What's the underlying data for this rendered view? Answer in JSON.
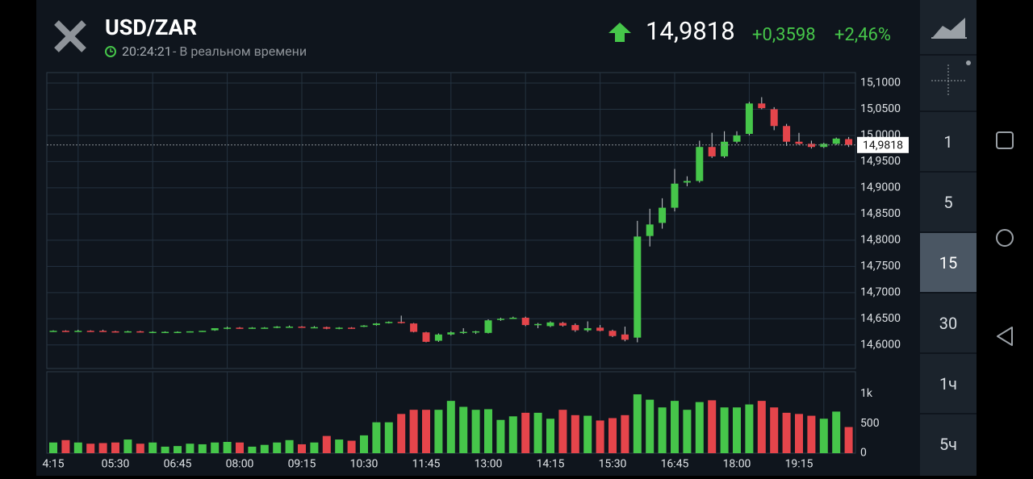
{
  "header": {
    "symbol": "USD/ZAR",
    "time": "20:24:21",
    "status": "- В реальном времени",
    "price": "14,9818",
    "change": "+0,3598",
    "change_percent": "+2,46%"
  },
  "sidebar": {
    "intervals": [
      "1",
      "5",
      "15",
      "30",
      "1ч",
      "5ч"
    ],
    "selected": 2
  },
  "chart_data": {
    "type": "candlestick",
    "categories": [
      "4:15",
      null,
      null,
      null,
      null,
      "05:30",
      null,
      null,
      null,
      null,
      "06:45",
      null,
      null,
      null,
      null,
      "08:00",
      null,
      null,
      null,
      null,
      "09:15",
      null,
      null,
      null,
      null,
      "10:30",
      null,
      null,
      null,
      null,
      "11:45",
      null,
      null,
      null,
      null,
      "13:00",
      null,
      null,
      null,
      null,
      "14:15",
      null,
      null,
      null,
      null,
      "15:30",
      null,
      null,
      null,
      null,
      "16:45",
      null,
      null,
      null,
      null,
      "18:00",
      null,
      null,
      null,
      null,
      "19:15",
      null,
      null,
      null,
      null
    ],
    "open": [
      14.626,
      14.627,
      14.626,
      14.627,
      14.627,
      14.626,
      14.625,
      14.626,
      14.625,
      14.625,
      14.625,
      14.625,
      14.626,
      14.628,
      14.631,
      14.633,
      14.632,
      14.633,
      14.633,
      14.635,
      14.635,
      14.634,
      14.634,
      14.632,
      14.633,
      14.635,
      14.638,
      14.643,
      14.644,
      14.641,
      14.624,
      14.608,
      14.62,
      14.623,
      14.624,
      14.623,
      14.648,
      14.652,
      14.652,
      14.638,
      14.636,
      14.642,
      14.638,
      14.628,
      14.633,
      14.627,
      14.62,
      14.614,
      14.808,
      14.833,
      14.862,
      14.91,
      14.913,
      14.978,
      14.96,
      14.988,
      15.003,
      15.061,
      15.05,
      15.018,
      14.988,
      14.984,
      14.978,
      14.984,
      14.993
    ],
    "high": [
      14.628,
      14.628,
      14.629,
      14.628,
      14.629,
      14.627,
      14.627,
      14.627,
      14.626,
      14.626,
      14.626,
      14.626,
      14.627,
      14.632,
      14.635,
      14.634,
      14.634,
      14.634,
      14.636,
      14.637,
      14.636,
      14.636,
      14.635,
      14.634,
      14.634,
      14.638,
      14.642,
      14.645,
      14.656,
      14.642,
      14.625,
      14.622,
      14.626,
      14.632,
      14.627,
      14.649,
      14.652,
      14.654,
      14.654,
      14.642,
      14.645,
      14.644,
      14.641,
      14.645,
      14.638,
      14.629,
      14.635,
      14.837,
      14.86,
      14.88,
      14.936,
      14.922,
      14.99,
      15.005,
      15.008,
      15.008,
      15.064,
      15.073,
      15.054,
      15.022,
      15.005,
      14.99,
      14.986,
      14.996,
      14.997
    ],
    "low": [
      14.625,
      14.625,
      14.625,
      14.625,
      14.626,
      14.624,
      14.624,
      14.624,
      14.624,
      14.624,
      14.624,
      14.624,
      14.625,
      14.627,
      14.63,
      14.631,
      14.631,
      14.632,
      14.632,
      14.634,
      14.633,
      14.633,
      14.63,
      14.63,
      14.631,
      14.634,
      14.637,
      14.641,
      14.641,
      14.624,
      14.605,
      14.606,
      14.618,
      14.621,
      14.621,
      14.622,
      14.646,
      14.65,
      14.636,
      14.632,
      14.634,
      14.635,
      14.625,
      14.625,
      14.626,
      14.615,
      14.607,
      14.605,
      14.788,
      14.822,
      14.855,
      14.903,
      14.91,
      14.957,
      14.957,
      14.985,
      15.0,
      15.05,
      15.01,
      14.98,
      14.982,
      14.975,
      14.976,
      14.982,
      14.978
    ],
    "close": [
      14.627,
      14.626,
      14.627,
      14.626,
      14.626,
      14.625,
      14.626,
      14.625,
      14.625,
      14.625,
      14.625,
      14.626,
      14.627,
      14.632,
      14.633,
      14.632,
      14.633,
      14.633,
      14.635,
      14.635,
      14.634,
      14.634,
      14.631,
      14.633,
      14.632,
      14.637,
      14.641,
      14.644,
      14.643,
      14.625,
      14.606,
      14.62,
      14.624,
      14.625,
      14.626,
      14.647,
      14.65,
      14.652,
      14.638,
      14.64,
      14.643,
      14.637,
      14.628,
      14.632,
      14.627,
      14.617,
      14.61,
      14.807,
      14.83,
      14.862,
      14.908,
      14.913,
      14.978,
      14.96,
      14.988,
      15.0,
      15.061,
      15.052,
      15.018,
      14.988,
      14.984,
      14.978,
      14.984,
      14.994,
      14.982
    ],
    "up_color": "#46c64a",
    "down_color": "#e5454b",
    "ylim": [
      14.555,
      15.12
    ],
    "yticks": [
      {
        "value": 14.6,
        "label": "14,6000"
      },
      {
        "value": 14.65,
        "label": "14,6500"
      },
      {
        "value": 14.7,
        "label": "14,7000"
      },
      {
        "value": 14.75,
        "label": "14,7500"
      },
      {
        "value": 14.8,
        "label": "14,8000"
      },
      {
        "value": 14.85,
        "label": "14,8500"
      },
      {
        "value": 14.9,
        "label": "14,9000"
      },
      {
        "value": 14.95,
        "label": "14,9500"
      },
      {
        "value": 15.0,
        "label": "15,0000"
      },
      {
        "value": 15.05,
        "label": "15,0500"
      },
      {
        "value": 15.1,
        "label": "15,1000"
      }
    ],
    "last_price": {
      "value": 14.9818,
      "label": "14,9818"
    },
    "volume": {
      "values": [
        180,
        220,
        180,
        160,
        170,
        180,
        230,
        160,
        180,
        110,
        120,
        160,
        150,
        180,
        190,
        180,
        110,
        140,
        180,
        220,
        150,
        180,
        290,
        230,
        210,
        300,
        520,
        520,
        660,
        730,
        730,
        730,
        880,
        780,
        730,
        740,
        560,
        620,
        680,
        680,
        580,
        730,
        640,
        630,
        550,
        590,
        640,
        990,
        900,
        770,
        880,
        730,
        860,
        890,
        770,
        770,
        820,
        880,
        770,
        680,
        660,
        630,
        580,
        700,
        440
      ],
      "ylim": [
        0,
        1370
      ],
      "yticks": [
        0,
        500,
        {
          "value": 1000,
          "label": "1k"
        }
      ]
    }
  }
}
